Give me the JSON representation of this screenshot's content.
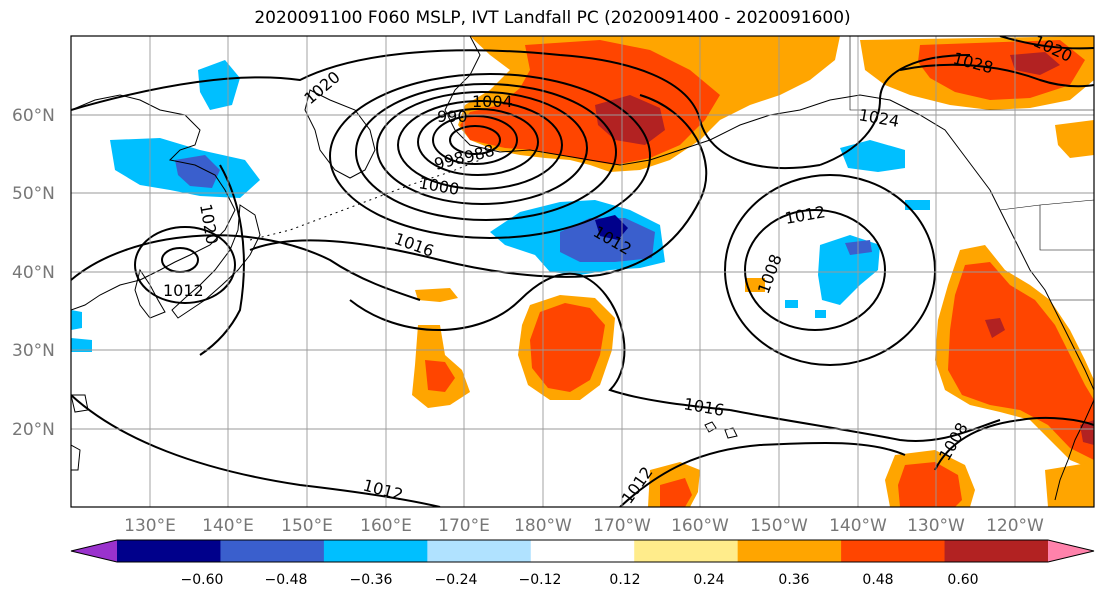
{
  "title": "2020091100 F060 MSLP, IVT Landfall PC (2020091400 - 2020091600)",
  "map": {
    "projection": "PlateCarree",
    "lon_range_east": [
      120,
      250
    ],
    "lat_range": [
      10,
      70
    ],
    "lat_labels": [
      "20°N",
      "30°N",
      "40°N",
      "50°N",
      "60°N"
    ],
    "lon_labels": [
      "130°E",
      "140°E",
      "150°E",
      "160°E",
      "170°E",
      "180°W",
      "170°W",
      "160°W",
      "150°W",
      "140°W",
      "130°W",
      "120°W"
    ],
    "gridlines": true
  },
  "isobar_labels": [
    "1020",
    "1004",
    "990",
    "998",
    "988",
    "1000",
    "1016",
    "1012",
    "1008",
    "1024",
    "1028",
    "1016",
    "1012",
    "1012",
    "1008",
    "1012",
    "1020",
    "1012",
    "1020"
  ],
  "colorbar": {
    "ticks": [
      "−0.60",
      "−0.48",
      "−0.36",
      "−0.24",
      "−0.12",
      "0.12",
      "0.24",
      "0.36",
      "0.48",
      "0.60"
    ],
    "colors": [
      "#9a32cd",
      "#00008b",
      "#3a5fcd",
      "#00bfff",
      "#b0e2ff",
      "#ffffff",
      "#ffec8b",
      "#ffa500",
      "#ff4500",
      "#b22222",
      "#ff82ab"
    ],
    "extend": "both"
  },
  "colors": {
    "orange": "#ffa500",
    "red_orange": "#ff4500",
    "dark_red": "#b22222",
    "light_yellow": "#ffec8b",
    "deep_sky_blue": "#00bfff",
    "royal_blue": "#3a5fcd",
    "navy": "#00008b",
    "coast": "#000000",
    "grid": "#999999"
  }
}
